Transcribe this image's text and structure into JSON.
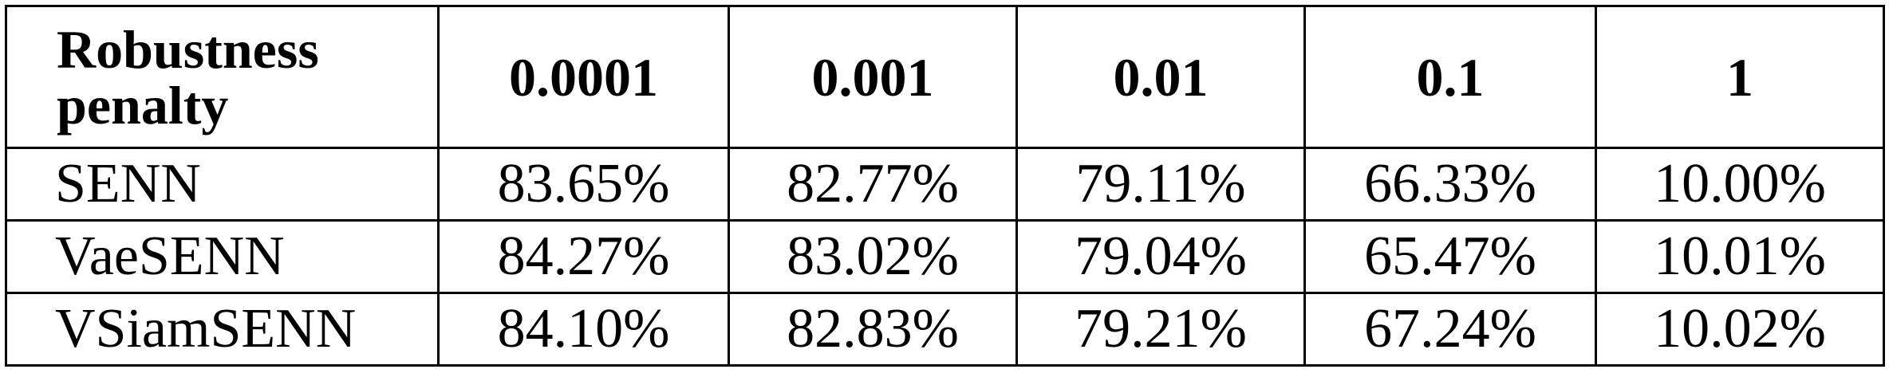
{
  "table": {
    "corner_header": "Robustness penalty",
    "columns": [
      "0.0001",
      "0.001",
      "0.01",
      "0.1",
      "1"
    ],
    "rows": [
      {
        "label": "SENN",
        "values": [
          "83.65%",
          "82.77%",
          "79.11%",
          "66.33%",
          "10.00%"
        ]
      },
      {
        "label": "VaeSENN",
        "values": [
          "84.27%",
          "83.02%",
          "79.04%",
          "65.47%",
          "10.01%"
        ]
      },
      {
        "label": "VSiamSENN",
        "values": [
          "84.10%",
          "82.83%",
          "79.21%",
          "67.24%",
          "10.02%"
        ]
      }
    ]
  },
  "chart_data": {
    "type": "table",
    "columns": [
      "Robustness penalty",
      "0.0001",
      "0.001",
      "0.01",
      "0.1",
      "1"
    ],
    "rows": [
      [
        "SENN",
        "83.65%",
        "82.77%",
        "79.11%",
        "66.33%",
        "10.00%"
      ],
      [
        "VaeSENN",
        "84.27%",
        "83.02%",
        "79.04%",
        "65.47%",
        "10.01%"
      ],
      [
        "VSiamSENN",
        "84.10%",
        "82.83%",
        "79.21%",
        "67.24%",
        "10.02%"
      ]
    ]
  }
}
